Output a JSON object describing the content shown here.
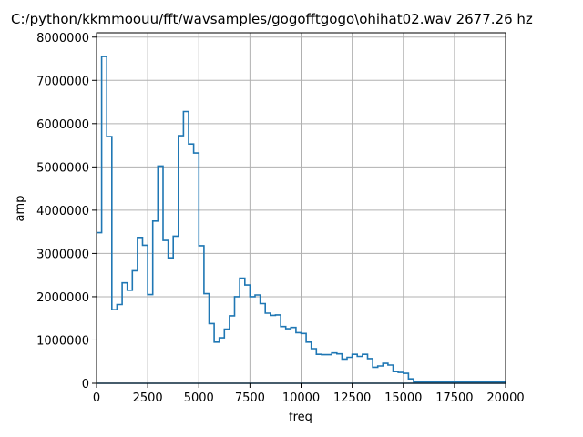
{
  "chart_data": {
    "type": "line",
    "title": "C:/python/kkmmoouu/fft/wavsamples/gogofftgogo\\ohihat02.wav 2677.26 hz",
    "xlabel": "freq",
    "ylabel": "amp",
    "xlim": [
      0,
      20000
    ],
    "ylim": [
      0,
      8100000
    ],
    "xticks": [
      0,
      2500,
      5000,
      7500,
      10000,
      12500,
      15000,
      17500,
      20000
    ],
    "xtick_labels": [
      "0",
      "2500",
      "5000",
      "7500",
      "10000",
      "12500",
      "15000",
      "17500",
      "20000"
    ],
    "yticks": [
      0,
      1000000,
      2000000,
      3000000,
      4000000,
      5000000,
      6000000,
      7000000,
      8000000
    ],
    "ytick_labels": [
      "0",
      "1000000",
      "2000000",
      "3000000",
      "4000000",
      "5000000",
      "6000000",
      "7000000",
      "8000000"
    ],
    "grid": true,
    "line_color": "#1f77b4",
    "step": true,
    "series": [
      {
        "x": [
          0,
          250,
          500,
          750,
          1000,
          1250,
          1500,
          1750,
          2000,
          2250,
          2500,
          2750,
          3000,
          3250,
          3500,
          3750,
          4000,
          4250,
          4500,
          4750,
          5000,
          5250,
          5500,
          5750,
          6000,
          6250,
          6500,
          6750,
          7000,
          7250,
          7500,
          7750,
          8000,
          8250,
          8500,
          8750,
          9000,
          9250,
          9500,
          9750,
          10000,
          10250,
          10500,
          10750,
          11000,
          11250,
          11500,
          11750,
          12000,
          12250,
          12500,
          12750,
          13000,
          13250,
          13500,
          13750,
          14000,
          14250,
          14500,
          14750,
          15000,
          15250,
          15500,
          15750,
          16000,
          16250,
          16500,
          16750,
          17000,
          17250,
          17500,
          17750,
          18000,
          18250,
          18500,
          18750,
          19000,
          19250,
          19500,
          19750,
          20000
        ],
        "y": [
          3480000,
          7550000,
          5700000,
          1700000,
          1820000,
          2320000,
          2150000,
          2600000,
          3370000,
          3190000,
          2050000,
          3750000,
          5020000,
          3300000,
          2900000,
          3400000,
          5720000,
          6280000,
          5530000,
          5320000,
          3180000,
          2070000,
          1380000,
          950000,
          1050000,
          1250000,
          1560000,
          2000000,
          2430000,
          2270000,
          2000000,
          2040000,
          1840000,
          1620000,
          1570000,
          1580000,
          1310000,
          1260000,
          1290000,
          1170000,
          1150000,
          950000,
          800000,
          670000,
          660000,
          660000,
          700000,
          680000,
          560000,
          600000,
          670000,
          620000,
          670000,
          570000,
          370000,
          400000,
          460000,
          420000,
          270000,
          250000,
          230000,
          100000,
          30000,
          30000,
          30000,
          30000,
          30000,
          30000,
          30000,
          30000,
          30000,
          30000,
          30000,
          30000,
          30000,
          30000,
          30000,
          30000,
          30000,
          30000,
          30000
        ]
      },
      {
        "x": [
          0,
          20000
        ],
        "y": [
          0,
          0
        ]
      }
    ]
  }
}
